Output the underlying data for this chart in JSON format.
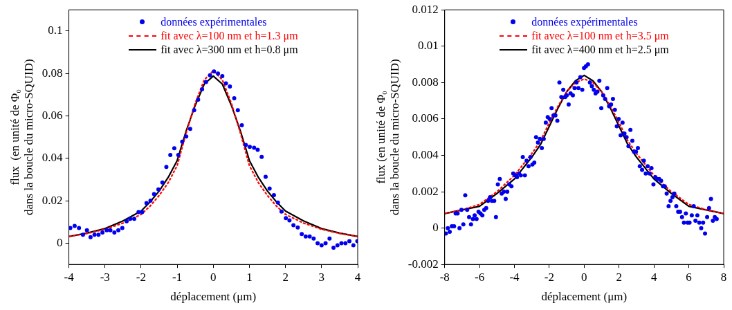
{
  "chart_data": [
    {
      "type": "scatter",
      "xlabel": "déplacement (μm)",
      "ylabel": "flux  (en unité de Φ₀\ndans la boucle du micro-SQUID)",
      "xlim": [
        -4,
        4
      ],
      "xticks": [
        -4,
        -3,
        -2,
        -1,
        0,
        1,
        2,
        3,
        4
      ],
      "ylim": [
        -0.01,
        0.11
      ],
      "yticks": [
        0,
        0.02,
        0.04,
        0.06,
        0.08,
        0.1
      ],
      "grid": false,
      "legend": "top",
      "marker": "circle",
      "series": [
        {
          "type": "scatter",
          "name": "données expérimentales",
          "color": "#0000ee",
          "x": [
            -3.96,
            -3.84,
            -3.72,
            -3.61,
            -3.5,
            -3.4,
            -3.29,
            -3.18,
            -3.07,
            -2.95,
            -2.85,
            -2.74,
            -2.63,
            -2.52,
            -2.4,
            -2.3,
            -2.19,
            -2.07,
            -1.97,
            -1.85,
            -1.74,
            -1.64,
            -1.52,
            -1.41,
            -1.3,
            -1.19,
            -1.08,
            -0.97,
            -0.86,
            -0.75,
            -0.64,
            -0.53,
            -0.42,
            -0.31,
            -0.2,
            -0.09,
            0.02,
            0.13,
            0.25,
            0.35,
            0.46,
            0.58,
            0.68,
            0.79,
            0.9,
            1.01,
            1.13,
            1.23,
            1.34,
            1.45,
            1.56,
            1.68,
            1.79,
            1.89,
            2.01,
            2.11,
            2.22,
            2.34,
            2.45,
            2.56,
            2.67,
            2.78,
            2.89,
            3,
            3.11,
            3.22,
            3.33,
            3.44,
            3.55,
            3.66,
            3.77,
            3.88,
            3.99
          ],
          "values": [
            0.0072,
            0.0082,
            0.0072,
            0.004,
            0.0061,
            0.0029,
            0.004,
            0.004,
            0.0051,
            0.0061,
            0.0061,
            0.0051,
            0.0061,
            0.0072,
            0.0104,
            0.0115,
            0.0115,
            0.0147,
            0.0147,
            0.0189,
            0.0201,
            0.0232,
            0.0254,
            0.0286,
            0.036,
            0.0416,
            0.0448,
            0.0416,
            0.0479,
            0.0503,
            0.0539,
            0.0627,
            0.0677,
            0.0726,
            0.076,
            0.0792,
            0.081,
            0.08,
            0.0788,
            0.0753,
            0.0739,
            0.0683,
            0.0627,
            0.0556,
            0.0463,
            0.0454,
            0.045,
            0.044,
            0.0407,
            0.0313,
            0.0258,
            0.0227,
            0.0192,
            0.0149,
            0.0118,
            0.0108,
            0.0085,
            0.0074,
            0.0043,
            0.0032,
            0.0032,
            0.0022,
            0,
            -0.001,
            0,
            0.0022,
            -0.0021,
            -0.001,
            0,
            0,
            0.001,
            -0.001,
            0.001
          ]
        },
        {
          "type": "line",
          "name": "fit avec λ=100 nm et h=1.3 μm",
          "color": "#ff0000",
          "line_style": "dashed",
          "marker": "none",
          "x": [
            -4,
            -3.5,
            -3,
            -2.5,
            -2,
            -1.75,
            -1.5,
            -1.25,
            -1,
            -0.75,
            -0.5,
            -0.25,
            0,
            0.25,
            0.5,
            0.75,
            1,
            1.25,
            1.5,
            1.75,
            2,
            2.5,
            3,
            3.5,
            4
          ],
          "values": [
            0.0032,
            0.0046,
            0.0066,
            0.0095,
            0.0136,
            0.0175,
            0.0225,
            0.0285,
            0.0366,
            0.052,
            0.066,
            0.077,
            0.0813,
            0.077,
            0.066,
            0.052,
            0.0366,
            0.0285,
            0.0225,
            0.0175,
            0.0136,
            0.0095,
            0.0066,
            0.0046,
            0.0032
          ]
        },
        {
          "type": "line",
          "name": "fit avec λ=300 nm et h=0.8 μm",
          "color": "#000000",
          "line_style": "solid",
          "marker": "none",
          "x": [
            -4,
            -3.5,
            -3,
            -2.5,
            -2,
            -1.75,
            -1.5,
            -1.25,
            -1,
            -0.75,
            -0.5,
            -0.25,
            0,
            0.25,
            0.5,
            0.75,
            1,
            1.25,
            1.5,
            1.75,
            2,
            2.5,
            3,
            3.5,
            4
          ],
          "values": [
            0.0032,
            0.0048,
            0.0069,
            0.0105,
            0.0152,
            0.0195,
            0.0246,
            0.031,
            0.039,
            0.053,
            0.065,
            0.075,
            0.0788,
            0.075,
            0.065,
            0.053,
            0.039,
            0.031,
            0.0246,
            0.0195,
            0.0152,
            0.0105,
            0.0069,
            0.0048,
            0.0032
          ]
        }
      ]
    },
    {
      "type": "scatter",
      "xlabel": "déplacement (μm)",
      "ylabel": "flux (en unité de Φ₀\ndans la boucle du micro-SQUID)",
      "xlim": [
        -8,
        8
      ],
      "xticks": [
        -8,
        -6,
        -4,
        -2,
        0,
        2,
        4,
        6,
        8
      ],
      "ylim": [
        -0.002,
        0.012
      ],
      "yticks": [
        -0.002,
        0,
        0.002,
        0.004,
        0.006,
        0.008,
        0.01,
        0.012
      ],
      "grid": false,
      "legend": "top",
      "marker": "circle",
      "series": [
        {
          "type": "scatter",
          "name": "données expérimentales",
          "color": "#0000ee",
          "x": [
            -7.93,
            -7.82,
            -7.71,
            -7.59,
            -7.46,
            -7.37,
            -7.26,
            -7.15,
            -7.04,
            -6.93,
            -6.82,
            -6.71,
            -6.6,
            -6.49,
            -6.38,
            -6.28,
            -6.17,
            -6.06,
            -5.95,
            -5.84,
            -5.73,
            -5.62,
            -5.51,
            -5.4,
            -5.29,
            -5.16,
            -5.06,
            -4.95,
            -4.84,
            -4.73,
            -4.61,
            -4.5,
            -4.41,
            -4.3,
            -4.17,
            -4.07,
            -3.96,
            -3.85,
            -3.74,
            -3.63,
            -3.52,
            -3.4,
            -3.3,
            -3.19,
            -3.08,
            -2.97,
            -2.86,
            -2.76,
            -2.65,
            -2.54,
            -2.43,
            -2.32,
            -2.2,
            -2.09,
            -1.98,
            -1.87,
            -1.76,
            -1.65,
            -1.54,
            -1.42,
            -1.31,
            -1.2,
            -1.09,
            -1,
            -0.89,
            -0.78,
            -0.65,
            -0.55,
            -0.44,
            -0.33,
            -0.22,
            -0.11,
            -0.01,
            0.1,
            0.22,
            0.33,
            0.44,
            0.55,
            0.65,
            0.76,
            0.87,
            0.98,
            1.09,
            1.2,
            1.32,
            1.43,
            1.54,
            1.65,
            1.76,
            1.87,
            1.98,
            2.09,
            2.2,
            2.31,
            2.43,
            2.54,
            2.65,
            2.76,
            2.86,
            2.97,
            3.08,
            3.19,
            3.32,
            3.42,
            3.53,
            3.64,
            3.75,
            3.86,
            3.97,
            4.08,
            4.19,
            4.3,
            4.41,
            4.52,
            4.62,
            4.73,
            4.84,
            4.95,
            5.06,
            5.17,
            5.28,
            5.39,
            5.5,
            5.61,
            5.72,
            5.83,
            5.93,
            6.04,
            6.17,
            6.28,
            6.38,
            6.49,
            6.6,
            6.71,
            6.82,
            6.93,
            7.05,
            7.16,
            7.27,
            7.38,
            7.49,
            7.6
          ],
          "values": [
            -0.0003,
            0,
            -0.0002,
            0.0001,
            0.0001,
            0.0008,
            0.0008,
            0,
            0.001,
            0.0002,
            0.0018,
            0.001,
            0.0006,
            0.0002,
            0.0005,
            0.0007,
            0.0005,
            0.0009,
            0.0008,
            0.0007,
            0.001,
            0.0011,
            0.0015,
            0.0017,
            0.0015,
            0.0015,
            0.0006,
            0.0024,
            0.0027,
            0.0019,
            0.002,
            0.0016,
            0.002,
            0.0024,
            0.0023,
            0.003,
            0.0029,
            0.0028,
            0.003,
            0.0029,
            0.0039,
            0.0029,
            0.0037,
            0.0034,
            0.0039,
            0.0035,
            0.0036,
            0.005,
            0.0047,
            0.0049,
            0.0044,
            0.0049,
            0.0058,
            0.0061,
            0.006,
            0.0066,
            0.0062,
            0.0062,
            0.0059,
            0.008,
            0.0072,
            0.0076,
            0.0072,
            0.0073,
            0.0068,
            0.0074,
            0.0073,
            0.0077,
            0.008,
            0.0077,
            0.0083,
            0.0076,
            0.0088,
            0.0089,
            0.009,
            0.008,
            0.0078,
            0.0076,
            0.0074,
            0.0075,
            0.0081,
            0.0066,
            0.0073,
            0.0071,
            0.0077,
            0.0067,
            0.0068,
            0.0071,
            0.0065,
            0.0056,
            0.006,
            0.0051,
            0.0058,
            0.0052,
            0.005,
            0.0045,
            0.0054,
            0.0048,
            0.0042,
            0.0042,
            0.0044,
            0.0034,
            0.0032,
            0.0037,
            0.003,
            0.0034,
            0.003,
            0.0033,
            0.0024,
            0.0028,
            0.0027,
            0.0027,
            0.0026,
            0.0023,
            0.0023,
            0.0019,
            0.0012,
            0.0015,
            0.0017,
            0.0019,
            0.0012,
            0.0009,
            0.0009,
            0.0006,
            0.0003,
            0.0008,
            0.0003,
            0.0003,
            0.0007,
            0.0012,
            0.0004,
            0.0007,
            0.0003,
            0,
            0.0003,
            -0.0003,
            0.0006,
            0.0011,
            0.0016,
            0.0004,
            0.0006,
            0.0005
          ]
        },
        {
          "type": "line",
          "name": "fit avec  λ=100 nm et h=3.5 μm",
          "color": "#ff0000",
          "line_style": "dashed",
          "marker": "none",
          "x": [
            -8,
            -7,
            -6,
            -5,
            -4,
            -3,
            -2.5,
            -2,
            -1.5,
            -1,
            -0.5,
            0,
            0.5,
            1,
            1.5,
            2,
            2.5,
            3,
            4,
            5,
            6,
            7,
            8
          ],
          "values": [
            0.0008,
            0.001,
            0.0013,
            0.002,
            0.0029,
            0.0041,
            0.0048,
            0.0058,
            0.0067,
            0.0075,
            0.008,
            0.0082,
            0.008,
            0.0075,
            0.0067,
            0.0058,
            0.0048,
            0.0041,
            0.0029,
            0.002,
            0.0013,
            0.001,
            0.0008
          ]
        },
        {
          "type": "line",
          "name": "fit avec λ=400 nm et h=2.5 μm",
          "color": "#000000",
          "line_style": "solid",
          "marker": "none",
          "x": [
            -8,
            -7,
            -6,
            -5,
            -4,
            -3,
            -2.5,
            -2,
            -1.5,
            -1,
            -0.5,
            0,
            0.5,
            1,
            1.5,
            2,
            2.5,
            3,
            4,
            5,
            6,
            7,
            8
          ],
          "values": [
            0.0008,
            0.001,
            0.0012,
            0.0019,
            0.0027,
            0.0039,
            0.0046,
            0.0056,
            0.0066,
            0.0075,
            0.0081,
            0.0084,
            0.0081,
            0.0075,
            0.0066,
            0.0056,
            0.0046,
            0.0039,
            0.0027,
            0.0019,
            0.0012,
            0.001,
            0.0008
          ]
        }
      ]
    }
  ]
}
